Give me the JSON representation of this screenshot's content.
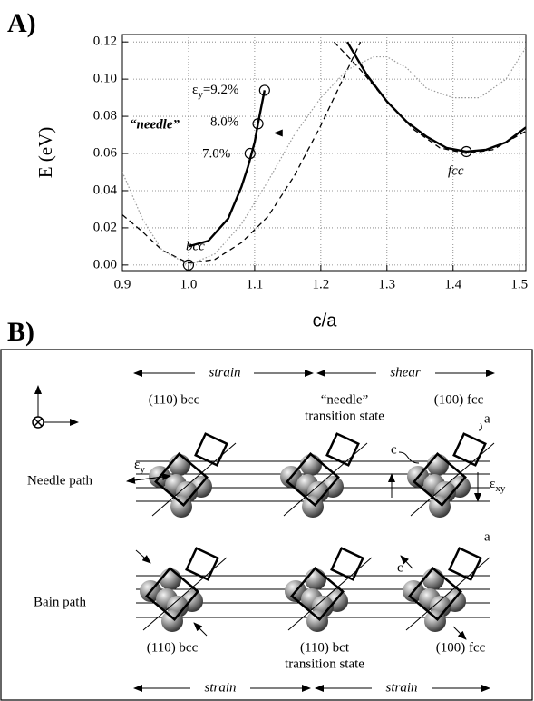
{
  "chart_data": {
    "type": "line",
    "panel_label": "A)",
    "xlabel": "c/a",
    "ylabel": "E (eV)",
    "xlim": [
      0.9,
      1.51
    ],
    "ylim": [
      -0.003,
      0.124
    ],
    "xticks": [
      0.9,
      {
        "value": 1.0,
        "label": "1.0"
      },
      1.1,
      1.2,
      1.3,
      1.4,
      1.5
    ],
    "yticks": [
      {
        "value": 0,
        "label": "0.00"
      },
      {
        "value": 0.02,
        "label": "0.02"
      },
      {
        "value": 0.04,
        "label": "0.04"
      },
      {
        "value": 0.06,
        "label": "0.06"
      },
      {
        "value": 0.08,
        "label": "0.08"
      },
      {
        "value": 0.1,
        "label": "0.10"
      },
      {
        "value": 0.12,
        "label": "0.12"
      }
    ],
    "grid": true,
    "series": [
      {
        "color": "#000000",
        "style": "solid",
        "x": [
          1.0,
          1.03,
          1.06,
          1.08,
          1.09,
          1.1,
          1.105,
          1.115
        ],
        "values": [
          0.01,
          0.013,
          0.025,
          0.042,
          0.053,
          0.066,
          0.076,
          0.094
        ]
      },
      {
        "color": "#000000",
        "style": "solid",
        "x": [
          1.24,
          1.27,
          1.3,
          1.33,
          1.36,
          1.39,
          1.42,
          1.45,
          1.48,
          1.51
        ],
        "values": [
          0.12,
          0.102,
          0.088,
          0.077,
          0.069,
          0.063,
          0.061,
          0.062,
          0.066,
          0.074
        ]
      },
      {
        "color": "#000000",
        "style": "dashed",
        "x": [
          0.9,
          0.93,
          0.96,
          1.0,
          1.04,
          1.08,
          1.12,
          1.16,
          1.2,
          1.24,
          1.26
        ],
        "values": [
          0.027,
          0.018,
          0.008,
          0.001,
          0.003,
          0.012,
          0.026,
          0.048,
          0.075,
          0.105,
          0.12
        ]
      },
      {
        "color": "#000000",
        "style": "dashed",
        "x": [
          1.22,
          1.26,
          1.3,
          1.34,
          1.38,
          1.42,
          1.46,
          1.51
        ],
        "values": [
          0.12,
          0.105,
          0.088,
          0.073,
          0.063,
          0.06,
          0.062,
          0.072
        ]
      },
      {
        "color": "#999999",
        "style": "dotted",
        "x": [
          0.9,
          0.93,
          0.96,
          1.0,
          1.04,
          1.08,
          1.12,
          1.16,
          1.2,
          1.24,
          1.28,
          1.3,
          1.33,
          1.36,
          1.4,
          1.44,
          1.48,
          1.51
        ],
        "values": [
          0.05,
          0.025,
          0.008,
          0.0,
          0.006,
          0.022,
          0.045,
          0.07,
          0.09,
          0.105,
          0.112,
          0.112,
          0.106,
          0.095,
          0.09,
          0.09,
          0.1,
          0.117
        ]
      }
    ],
    "markers": {
      "x": [
        1.0,
        1.093,
        1.105,
        1.115,
        1.42
      ],
      "values": [
        0,
        0.06,
        0.076,
        0.094,
        0.061
      ]
    },
    "arrow": {
      "x": [
        1.4,
        1.13
      ],
      "values": [
        0.071,
        0.071
      ]
    },
    "annotations": [
      {
        "text": "bcc"
      },
      {
        "text": "fcc"
      },
      {
        "text": "“needle”"
      },
      {
        "text": "7.0%"
      },
      {
        "text": "8.0%"
      },
      {
        "symbol": "ε",
        "subscript": "y",
        "text": "=9.2%"
      }
    ]
  },
  "diagram": {
    "panel_label": "B)",
    "top_arrows": [
      "strain",
      "shear"
    ],
    "top_labels": [
      "(110) bcc",
      "“needle”",
      "transition state",
      "(100) fcc"
    ],
    "rows": [
      "Needle path",
      "Bain path"
    ],
    "symbols": {
      "a": "a",
      "c": "c",
      "eps": "ε",
      "eps_y_sub": "y",
      "eps_xy_sub": "xy"
    },
    "bottom_labels": [
      "(110) bcc",
      "(110) bct",
      "transition state",
      "(100) fcc"
    ],
    "bottom_arrows": [
      "strain",
      "strain"
    ]
  }
}
